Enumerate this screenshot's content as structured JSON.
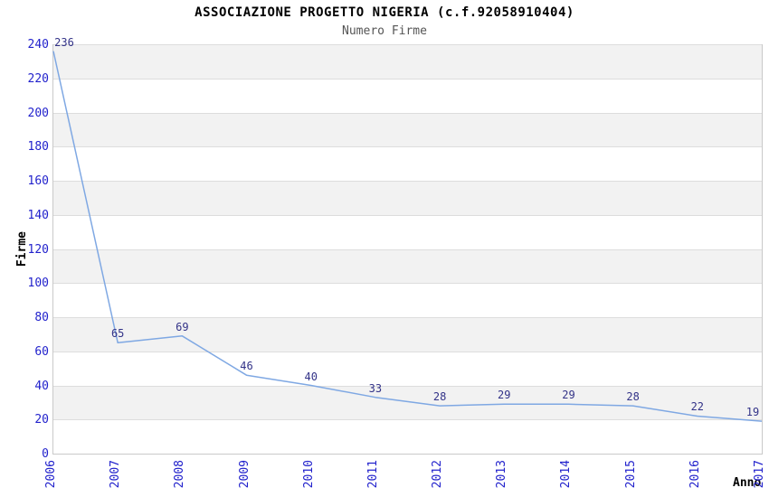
{
  "chart_data": {
    "type": "line",
    "title": "ASSOCIAZIONE PROGETTO NIGERIA (c.f.92058910404)",
    "subtitle": "Numero Firme",
    "xlabel": "Anno",
    "ylabel": "Firme",
    "categories": [
      "2006",
      "2007",
      "2008",
      "2009",
      "2010",
      "2011",
      "2012",
      "2013",
      "2014",
      "2015",
      "2016",
      "2017"
    ],
    "series": [
      {
        "name": "Numero Firme",
        "values": [
          236,
          65,
          69,
          46,
          40,
          33,
          28,
          29,
          29,
          28,
          22,
          19
        ]
      }
    ],
    "yticks": [
      0,
      20,
      40,
      60,
      80,
      100,
      120,
      140,
      160,
      180,
      200,
      220,
      240
    ],
    "ylim": [
      0,
      240
    ],
    "grid": true,
    "band_fill": "alternating horizontal bands, gray topmost",
    "legend": "none",
    "data_labels": true,
    "colors": {
      "line": "#7fa8e3",
      "tick_label": "#2222cc",
      "data_label": "#333388",
      "band": "#f2f2f2",
      "gridline": "#dddddd",
      "axis_border": "#c9c9c9",
      "title": "#000000",
      "subtitle": "#555555",
      "axis_title": "#000000"
    }
  }
}
